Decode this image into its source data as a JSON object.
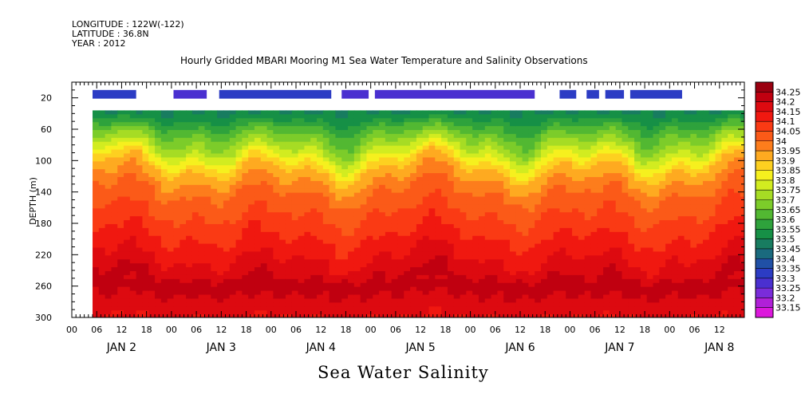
{
  "header": {
    "longitude": "LONGITUDE : 122W(-122)",
    "latitude": "LATITUDE : 36.8N",
    "year": "YEAR : 2012"
  },
  "chart_data": {
    "type": "heatmap",
    "title": "Hourly Gridded MBARI Mooring M1 Sea Water Temperature and Salinity Observations",
    "xlabel": "Sea Water Salinity",
    "ylabel": "DEPTH (m)",
    "ylim": [
      300,
      0
    ],
    "y_ticks": [
      20,
      60,
      100,
      140,
      180,
      220,
      260,
      300
    ],
    "x_hour_ticks": [
      "00",
      "06",
      "12",
      "18",
      "00",
      "06",
      "12",
      "18",
      "00",
      "06",
      "12",
      "18",
      "00",
      "06",
      "12",
      "18",
      "00",
      "06",
      "12",
      "18",
      "00",
      "06",
      "12",
      "18",
      "00",
      "06",
      "12"
    ],
    "x_day_labels": [
      "JAN 2",
      "JAN 3",
      "JAN 4",
      "JAN 5",
      "JAN 6",
      "JAN 7",
      "JAN 8"
    ],
    "x_range_hours": [
      0,
      162
    ],
    "data_start_hour": 5,
    "colorbar": {
      "levels": [
        "34.25",
        "34.2",
        "34.15",
        "34.1",
        "34.05",
        "34",
        "33.95",
        "33.9",
        "33.85",
        "33.8",
        "33.75",
        "33.7",
        "33.65",
        "33.6",
        "33.55",
        "33.5",
        "33.45",
        "33.4",
        "33.35",
        "33.3",
        "33.25",
        "33.2",
        "33.15"
      ],
      "colors": [
        "#9a0010",
        "#c00010",
        "#dd0a10",
        "#f01810",
        "#fa3a14",
        "#fb5a18",
        "#fd7d1c",
        "#feaa20",
        "#fdd020",
        "#f6f01e",
        "#d2ec20",
        "#a6dc24",
        "#7ccc2a",
        "#52b832",
        "#2ea23c",
        "#169046",
        "#187c60",
        "#1a6a7e",
        "#2050a6",
        "#2c3cc4",
        "#4a30d0",
        "#7a2cda",
        "#b020d8",
        "#dc18dc"
      ]
    },
    "salinity_profile": [
      {
        "depth": 40,
        "value": 33.5
      },
      {
        "depth": 60,
        "value": 33.62
      },
      {
        "depth": 90,
        "value": 33.78
      },
      {
        "depth": 110,
        "value": 33.9
      },
      {
        "depth": 140,
        "value": 34.0
      },
      {
        "depth": 180,
        "value": 34.07
      },
      {
        "depth": 220,
        "value": 34.14
      },
      {
        "depth": 260,
        "value": 34.22
      },
      {
        "depth": 290,
        "value": 34.17
      },
      {
        "depth": 300,
        "value": 34.15
      }
    ],
    "surface_segments": [
      {
        "start": 5,
        "end": 15.5,
        "value": 33.3
      },
      {
        "start": 24.5,
        "end": 32.5,
        "value": 33.28
      },
      {
        "start": 35.5,
        "end": 62.5,
        "value": 33.33
      },
      {
        "start": 65,
        "end": 71.5,
        "value": 33.27
      },
      {
        "start": 73,
        "end": 111.5,
        "value": 33.28
      },
      {
        "start": 117.5,
        "end": 121.5,
        "value": 33.32
      },
      {
        "start": 124,
        "end": 127,
        "value": 33.3
      },
      {
        "start": 128.5,
        "end": 133,
        "value": 33.3
      },
      {
        "start": 134.5,
        "end": 147,
        "value": 33.31
      }
    ],
    "surface_depth_range": [
      10,
      20
    ],
    "data_top_depth": 36
  }
}
